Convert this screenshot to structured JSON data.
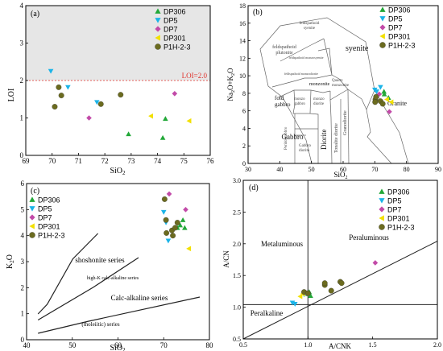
{
  "legend": [
    {
      "name": "DP306",
      "marker": "triangle-up",
      "color": "#22a838"
    },
    {
      "name": "DP5",
      "marker": "triangle-down",
      "color": "#1bb4e8"
    },
    {
      "name": "DP7",
      "marker": "diamond",
      "color": "#c24aa8"
    },
    {
      "name": "DP301",
      "marker": "triangle-left",
      "color": "#f2e000"
    },
    {
      "name": "P1H-2-3",
      "marker": "circle",
      "color": "#6b6b1f"
    }
  ],
  "chart_data": [
    {
      "panel": "(a)",
      "type": "scatter",
      "xlabel": "SiO2",
      "ylabel": "LOI",
      "xlim": [
        69,
        76
      ],
      "ylim": [
        0,
        4
      ],
      "xticks": [
        "69",
        "70",
        "71",
        "72",
        "73",
        "74",
        "75",
        "76"
      ],
      "yticks": [
        "0",
        "1",
        "2",
        "3",
        "4"
      ],
      "reference": {
        "label": "LOI=2.0",
        "y": 2.0,
        "color": "#e0302a",
        "shade": "#e6e6e6"
      },
      "series": [
        {
          "name": "DP306",
          "points": [
            [
              72.9,
              0.57
            ],
            [
              74.3,
              0.98
            ],
            [
              74.2,
              0.47
            ]
          ]
        },
        {
          "name": "DP5",
          "points": [
            [
              69.95,
              2.25
            ],
            [
              70.6,
              1.82
            ],
            [
              71.7,
              1.42
            ]
          ]
        },
        {
          "name": "DP7",
          "points": [
            [
              71.4,
              1.0
            ],
            [
              74.65,
              1.65
            ]
          ]
        },
        {
          "name": "DP301",
          "points": [
            [
              73.75,
              1.05
            ],
            [
              75.2,
              0.92
            ]
          ]
        },
        {
          "name": "P1H-2-3",
          "points": [
            [
              70.25,
              1.82
            ],
            [
              70.35,
              1.6
            ],
            [
              70.1,
              1.3
            ],
            [
              71.85,
              1.37
            ],
            [
              72.6,
              1.62
            ]
          ]
        }
      ]
    },
    {
      "panel": "(b)",
      "type": "scatter",
      "xlabel": "SiO2",
      "ylabel": "Na2O+K2O",
      "xlim": [
        30,
        90
      ],
      "ylim": [
        0,
        18
      ],
      "xticks": [
        "30",
        "40",
        "50",
        "60",
        "70",
        "80",
        "90"
      ],
      "yticks": [
        "0",
        "2",
        "4",
        "6",
        "8",
        "10",
        "12",
        "14",
        "16",
        "18"
      ],
      "fields": [
        "feldspathoid syenite",
        "feldspathoid plutonite",
        "syenite",
        "feldspathoid monzosyenite",
        "feldspathoid monzodiorite",
        "monzonite",
        "foid gabbro",
        "monzo gabbro",
        "monzo diorite",
        "Quartz monzonite",
        "Granite",
        "Gabbro",
        "Diorite",
        "Granodiorite",
        "Tonalite diorite",
        "Peridotgabbro",
        "Gabbro diorite"
      ],
      "series": [
        {
          "name": "DP306",
          "points": [
            [
              73.0,
              7.9
            ],
            [
              74.3,
              7.5
            ],
            [
              72.9,
              8.2
            ]
          ]
        },
        {
          "name": "DP5",
          "points": [
            [
              70.0,
              8.4
            ],
            [
              70.6,
              8.2
            ],
            [
              71.8,
              8.7
            ]
          ]
        },
        {
          "name": "DP7",
          "points": [
            [
              71.4,
              7.9
            ],
            [
              74.6,
              5.9
            ]
          ]
        },
        {
          "name": "DP301",
          "points": [
            [
              73.8,
              7.3
            ],
            [
              75.2,
              7.0
            ]
          ]
        },
        {
          "name": "P1H-2-3",
          "points": [
            [
              70.2,
              7.3
            ],
            [
              70.4,
              7.6
            ],
            [
              70.1,
              7.0
            ],
            [
              71.8,
              7.1
            ],
            [
              72.5,
              6.8
            ]
          ]
        }
      ]
    },
    {
      "panel": "(c)",
      "type": "scatter",
      "xlabel": "SiO2",
      "ylabel": "K2O",
      "xlim": [
        40,
        80
      ],
      "ylim": [
        0,
        6
      ],
      "xticks": [
        "40",
        "50",
        "60",
        "70",
        "80"
      ],
      "yticks": [
        "0",
        "1",
        "2",
        "3",
        "4",
        "5",
        "6"
      ],
      "series_labels": [
        "shoshonite series",
        "high-K calc-alkaline series",
        "Calc-alkaline series",
        "(tholeiitic) series"
      ],
      "series": [
        {
          "name": "DP306",
          "points": [
            [
              73.0,
              4.3
            ],
            [
              74.2,
              4.6
            ],
            [
              74.6,
              4.3
            ],
            [
              73.6,
              4.4
            ]
          ]
        },
        {
          "name": "DP5",
          "points": [
            [
              70.0,
              4.9
            ],
            [
              70.5,
              4.5
            ],
            [
              71.0,
              3.8
            ]
          ]
        },
        {
          "name": "DP7",
          "points": [
            [
              71.2,
              5.6
            ],
            [
              74.8,
              5.0
            ]
          ]
        },
        {
          "name": "DP301",
          "points": [
            [
              75.5,
              3.5
            ]
          ]
        },
        {
          "name": "P1H-2-3",
          "points": [
            [
              70.2,
              5.4
            ],
            [
              70.5,
              4.6
            ],
            [
              70.6,
              4.1
            ],
            [
              71.8,
              4.2
            ],
            [
              72.5,
              4.3
            ],
            [
              72.0,
              4.0
            ],
            [
              73.0,
              4.5
            ]
          ]
        }
      ]
    },
    {
      "panel": "(d)",
      "type": "scatter",
      "xlabel": "A/CNK",
      "ylabel": "A/CN",
      "xlim": [
        0.5,
        2.0
      ],
      "ylim": [
        0.5,
        3.0
      ],
      "xticks": [
        "0.5",
        "1.0",
        "1.5",
        "2.0"
      ],
      "yticks": [
        "0.5",
        "1.0",
        "1.5",
        "2.0",
        "2.5",
        "3.0"
      ],
      "fields": [
        "Metaluminous",
        "Peraluminous",
        "Peralkaline"
      ],
      "series": [
        {
          "name": "DP306",
          "points": [
            [
              1.0,
              1.21
            ],
            [
              1.01,
              1.24
            ],
            [
              1.02,
              1.18
            ]
          ]
        },
        {
          "name": "DP5",
          "points": [
            [
              0.88,
              1.07
            ],
            [
              0.9,
              1.05
            ],
            [
              0.97,
              1.2
            ]
          ]
        },
        {
          "name": "DP7",
          "points": [
            [
              0.99,
              1.22
            ],
            [
              1.52,
              1.7
            ]
          ]
        },
        {
          "name": "DP301",
          "points": [
            [
              0.94,
              1.17
            ],
            [
              0.96,
              1.21
            ]
          ]
        },
        {
          "name": "P1H-2-3",
          "points": [
            [
              0.97,
              1.24
            ],
            [
              1.0,
              1.22
            ],
            [
              1.13,
              1.35
            ],
            [
              1.13,
              1.38
            ],
            [
              1.18,
              1.26
            ],
            [
              1.25,
              1.4
            ],
            [
              1.26,
              1.38
            ]
          ]
        }
      ]
    }
  ]
}
